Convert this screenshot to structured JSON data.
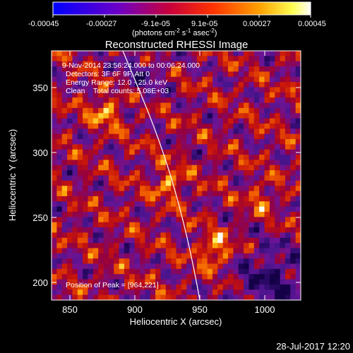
{
  "colorbar": {
    "ticks": [
      "-0.00045",
      "-0.00027",
      "-9.1e-05",
      "9.1e-05",
      "0.00027",
      "0.00045"
    ],
    "units_prefix": "(photons cm",
    "units_exp1": "-2",
    "units_mid": " s",
    "units_exp2": "-1",
    "units_mid2": " asec",
    "units_exp3": "-2",
    "units_suffix": ")"
  },
  "plot": {
    "title": "Reconstructed RHESSI Image",
    "xlabel": "Heliocentric X (arcsec)",
    "ylabel": "Heliocentric Y (arcsec)",
    "xticks": [
      "850",
      "900",
      "950",
      "1000"
    ],
    "yticks": [
      "350",
      "300",
      "250",
      "200"
    ]
  },
  "annotations": {
    "line1": "9-Nov-2014 23:56:24.000 to 00:06:24.000",
    "line2": "Detectors: 3F 6F 9F, Att 0",
    "line3": "Energy Range: 12.0 - 25.0 keV",
    "line4": "Clean    Total counts: 5.08E+03",
    "peak": "Position of Peak = [964,221]"
  },
  "footer": {
    "timestamp": "28-Jul-2017 12:20"
  },
  "chart_data": {
    "type": "heatmap",
    "title": "Reconstructed RHESSI Image",
    "xlabel": "Heliocentric X (arcsec)",
    "ylabel": "Heliocentric Y (arcsec)",
    "xlim": [
      836,
      1028
    ],
    "ylim": [
      186,
      378
    ],
    "color_range": [
      -0.00045,
      0.00045
    ],
    "colormap": "blue-purple-red-orange-yellow-white",
    "peak": [
      964,
      221
    ],
    "limb_curve": "white solar limb curve crossing the field"
  }
}
